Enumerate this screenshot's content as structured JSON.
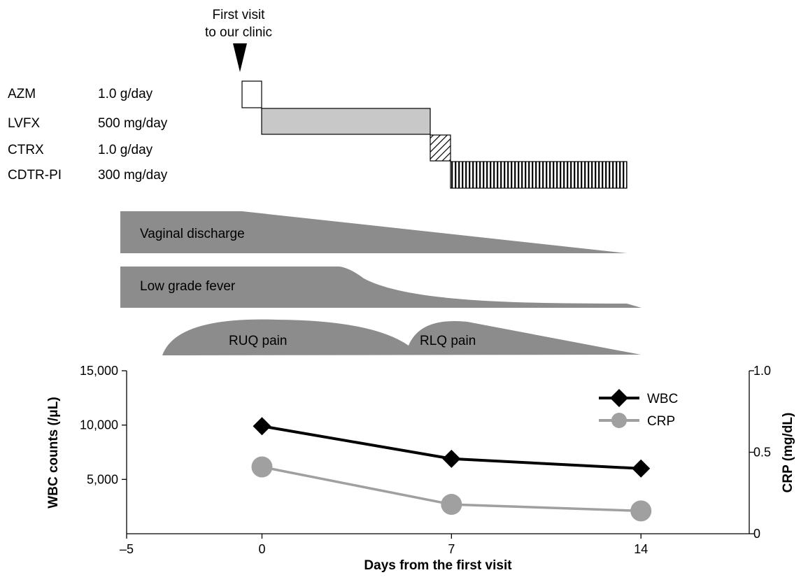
{
  "annotation": {
    "line1": "First visit",
    "line2": "to our clinic"
  },
  "treatments": [
    {
      "drug": "AZM",
      "dose": "1.0 g/day",
      "start_day": 0,
      "end_day": 1,
      "fill": "white"
    },
    {
      "drug": "LVFX",
      "dose": "500 mg/day",
      "start_day": 1,
      "end_day": 7,
      "fill": "#c8c8c8"
    },
    {
      "drug": "CTRX",
      "dose": "1.0 g/day",
      "start_day": 7,
      "end_day": 8,
      "fill": "diagonal-hatch"
    },
    {
      "drug": "CDTR-PI",
      "dose": "300 mg/day",
      "start_day": 8,
      "end_day": 14,
      "fill": "vertical-hatch"
    }
  ],
  "symptoms": [
    {
      "label": "Vaginal discharge"
    },
    {
      "label": "Low grade fever"
    },
    {
      "label": "RUQ pain"
    },
    {
      "label": "RLQ pain"
    }
  ],
  "symptom_color": "#8c8c8c",
  "chart_data": {
    "type": "line",
    "xlabel": "Days from the first visit",
    "ylabel": "WBC counts (/μL)",
    "y2label": "CRP (mg/dL)",
    "xlim": [
      -5,
      18
    ],
    "ylim": [
      0,
      15000
    ],
    "y2lim": [
      0,
      1.0
    ],
    "xticks": [
      -5,
      0,
      7,
      14
    ],
    "xtick_labels": [
      "–5",
      "0",
      "7",
      "14"
    ],
    "yticks": [
      5000,
      10000,
      15000
    ],
    "ytick_labels": [
      "5,000",
      "10,000",
      "15,000"
    ],
    "y2ticks": [
      0,
      0.5,
      1.0
    ],
    "y2tick_labels": [
      "0",
      "0.5",
      "1.0"
    ],
    "legend_position": "top-right",
    "series": [
      {
        "name": "WBC",
        "axis": "left",
        "marker": "diamond",
        "color": "#000000",
        "x": [
          0,
          7,
          14
        ],
        "y": [
          9900,
          6900,
          6000
        ]
      },
      {
        "name": "CRP",
        "axis": "right",
        "marker": "circle",
        "color": "#a0a0a0",
        "x": [
          0,
          7,
          14
        ],
        "y": [
          0.41,
          0.18,
          0.14
        ]
      }
    ]
  }
}
